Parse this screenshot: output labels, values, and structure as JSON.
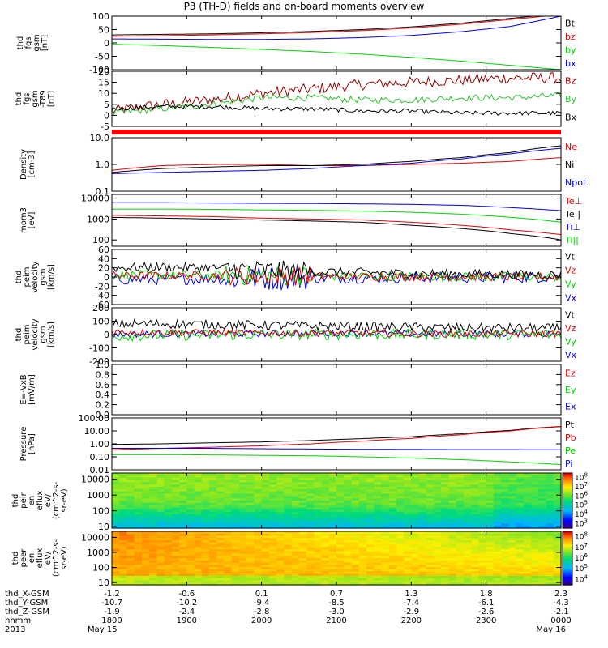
{
  "title": "P3 (TH-D) fields and on-board moments overview",
  "colors": {
    "black": "#000000",
    "red": "#e00000",
    "green": "#00d000",
    "blue": "#0000e0",
    "darkred": "#900000",
    "dkgreen": "#30c030",
    "bar": "#ff0000"
  },
  "chart_data": [
    {
      "type": "line",
      "ylabel": [
        "thd",
        "fgs",
        "gsm",
        "[nT]"
      ],
      "ylim": [
        -100,
        100
      ],
      "yticks": [
        -100,
        -50,
        0,
        50,
        100
      ],
      "legend": [
        {
          "label": "Bt",
          "color": "#000000"
        },
        {
          "label": "bz",
          "color": "#e00000"
        },
        {
          "label": "by",
          "color": "#00d000"
        },
        {
          "label": "bx",
          "color": "#0000e0"
        }
      ],
      "series": [
        {
          "name": "Bt",
          "color": "#000000",
          "values": [
            30,
            32,
            34,
            38,
            43,
            50,
            60,
            74,
            92,
            110
          ]
        },
        {
          "name": "bz",
          "color": "#e00000",
          "values": [
            25,
            27,
            30,
            34,
            39,
            46,
            56,
            70,
            88,
            106
          ]
        },
        {
          "name": "bx",
          "color": "#0000e0",
          "values": [
            15,
            14,
            13,
            13,
            15,
            20,
            28,
            42,
            62,
            100
          ]
        },
        {
          "name": "by",
          "color": "#00d000",
          "values": [
            -5,
            -10,
            -17,
            -24,
            -32,
            -42,
            -54,
            -68,
            -84,
            -100
          ]
        }
      ]
    },
    {
      "type": "line",
      "ylabel": [
        "thd",
        "fgs",
        "gsm",
        "-T89",
        "[nT]"
      ],
      "ylim": [
        -5,
        20
      ],
      "yticks": [
        -5,
        0,
        5,
        10,
        15,
        20
      ],
      "legend": [
        {
          "label": "Bz",
          "color": "#900000"
        },
        {
          "label": "By",
          "color": "#30c030"
        },
        {
          "label": "Bx",
          "color": "#000000"
        }
      ],
      "series": [
        {
          "name": "Bz",
          "color": "#900000",
          "values": [
            2,
            5,
            7,
            10,
            12,
            14,
            15,
            16,
            17,
            17
          ],
          "noise": 2.5
        },
        {
          "name": "By",
          "color": "#30c030",
          "values": [
            1,
            3,
            5,
            8,
            8,
            7,
            7,
            8,
            8,
            9
          ],
          "noise": 1.5
        },
        {
          "name": "Bx",
          "color": "#000000",
          "values": [
            3,
            4,
            4,
            3,
            3,
            2,
            2,
            1,
            1,
            1
          ],
          "noise": 1
        }
      ]
    },
    {
      "type": "line",
      "log": true,
      "ylabel": [
        "Density",
        "[cm-3]"
      ],
      "ylim": [
        0.1,
        10
      ],
      "yticks": [
        0.1,
        1.0,
        10.0
      ],
      "yticklabels": [
        "0.1",
        "1.0",
        "10.0"
      ],
      "legend": [
        {
          "label": "Ne",
          "color": "#e00000"
        },
        {
          "label": "Ni",
          "color": "#000000"
        },
        {
          "label": "Npot",
          "color": "#0000e0"
        }
      ],
      "series": [
        {
          "name": "Ne",
          "color": "#e00000",
          "values": [
            0.6,
            0.9,
            1.0,
            1.0,
            0.9,
            0.9,
            1.0,
            1.1,
            1.3,
            1.8
          ]
        },
        {
          "name": "Ni",
          "color": "#000000",
          "values": [
            0.5,
            0.7,
            0.8,
            0.9,
            0.9,
            1.0,
            1.3,
            1.8,
            2.8,
            5.0
          ]
        },
        {
          "name": "Npot",
          "color": "#0000e0",
          "values": [
            0.45,
            0.5,
            0.55,
            0.6,
            0.7,
            0.9,
            1.1,
            1.6,
            2.5,
            4.0
          ]
        }
      ]
    },
    {
      "type": "line",
      "log": true,
      "ylabel": [
        "mom3",
        "[eV]"
      ],
      "ylim": [
        50,
        15000
      ],
      "yticks": [
        100,
        1000,
        10000
      ],
      "yticklabels": [
        "100",
        "1000",
        "10000"
      ],
      "legend": [
        {
          "label": "Te⊥",
          "color": "#e00000"
        },
        {
          "label": "Te||",
          "color": "#000000"
        },
        {
          "label": "Ti⊥",
          "color": "#0000e0"
        },
        {
          "label": "Ti||",
          "color": "#00d000"
        }
      ],
      "series": [
        {
          "name": "Ti⊥",
          "color": "#0000e0",
          "values": [
            6000,
            6000,
            5800,
            5600,
            5500,
            5300,
            5000,
            4500,
            3500,
            2500
          ]
        },
        {
          "name": "Ti||",
          "color": "#00d000",
          "values": [
            3000,
            3000,
            2900,
            2700,
            2600,
            2400,
            2100,
            1700,
            1200,
            700
          ]
        },
        {
          "name": "Te⊥",
          "color": "#e00000",
          "values": [
            1500,
            1400,
            1300,
            1100,
            1000,
            900,
            700,
            500,
            300,
            180
          ]
        },
        {
          "name": "Te||",
          "color": "#000000",
          "values": [
            1200,
            1100,
            1000,
            900,
            800,
            700,
            500,
            350,
            200,
            100
          ]
        }
      ]
    },
    {
      "type": "line",
      "ylabel": [
        "thd",
        "peim",
        "velocity",
        "gsm",
        "[km/s]"
      ],
      "ylim": [
        -60,
        60
      ],
      "yticks": [
        -60,
        -40,
        -20,
        0,
        20,
        40,
        60
      ],
      "legend": [
        {
          "label": "Vt",
          "color": "#000000"
        },
        {
          "label": "Vz",
          "color": "#e00000"
        },
        {
          "label": "Vy",
          "color": "#00d000"
        },
        {
          "label": "Vx",
          "color": "#0000e0"
        }
      ],
      "series": [
        {
          "name": "Vx",
          "color": "#0000e0",
          "values": [
            -5,
            -5,
            -4,
            -3,
            -2,
            -2,
            -1,
            -1,
            -1,
            0
          ],
          "noise": 12
        },
        {
          "name": "Vy",
          "color": "#00d000",
          "values": [
            5,
            4,
            4,
            3,
            2,
            2,
            1,
            1,
            1,
            0
          ],
          "noise": 10
        },
        {
          "name": "Vz",
          "color": "#e00000",
          "values": [
            3,
            3,
            3,
            2,
            2,
            1,
            1,
            1,
            0,
            0
          ],
          "noise": 9
        },
        {
          "name": "Vt",
          "color": "#000000",
          "values": [
            20,
            22,
            20,
            15,
            12,
            10,
            8,
            7,
            6,
            5
          ],
          "noise": 10
        }
      ]
    },
    {
      "type": "line",
      "ylabel": [
        "thd",
        "peim",
        "velocity",
        "gsm",
        "[km/s]"
      ],
      "ylim": [
        -200,
        200
      ],
      "yticks": [
        -200,
        -100,
        0,
        100,
        200
      ],
      "legend": [
        {
          "label": "Vt",
          "color": "#000000"
        },
        {
          "label": "Vz",
          "color": "#e00000"
        },
        {
          "label": "Vy",
          "color": "#00d000"
        },
        {
          "label": "Vx",
          "color": "#0000e0"
        }
      ],
      "series": [
        {
          "name": "Vx",
          "color": "#0000e0",
          "values": [
            0,
            5,
            5,
            5,
            10,
            10,
            5,
            5,
            5,
            5
          ],
          "noise": 25
        },
        {
          "name": "Vy",
          "color": "#00d000",
          "values": [
            -10,
            -5,
            -5,
            0,
            0,
            0,
            0,
            0,
            0,
            0
          ],
          "noise": 40
        },
        {
          "name": "Vz",
          "color": "#e00000",
          "values": [
            20,
            15,
            15,
            10,
            10,
            10,
            5,
            5,
            5,
            5
          ],
          "noise": 25
        },
        {
          "name": "Vt",
          "color": "#000000",
          "values": [
            80,
            80,
            75,
            70,
            65,
            60,
            55,
            50,
            50,
            45
          ],
          "noise": 35
        }
      ]
    },
    {
      "type": "line",
      "ylabel": [
        "E=-VxB",
        "[mV/m]"
      ],
      "ylim": [
        0,
        1
      ],
      "yticks": [
        0.0,
        0.2,
        0.4,
        0.6,
        0.8,
        1.0
      ],
      "yticklabels": [
        "0.0",
        "0.2",
        "0.4",
        "0.6",
        "0.8",
        "1.0"
      ],
      "legend": [
        {
          "label": "Ez",
          "color": "#e00000"
        },
        {
          "label": "Ey",
          "color": "#00d000"
        },
        {
          "label": "Ex",
          "color": "#0000e0"
        }
      ],
      "series": []
    },
    {
      "type": "line",
      "log": true,
      "ylabel": [
        "Pressure",
        "[nPa]"
      ],
      "ylim": [
        0.01,
        100
      ],
      "yticks": [
        0.01,
        0.1,
        1,
        10,
        100
      ],
      "yticklabels": [
        "0.01",
        "0.10",
        "1.00",
        "10.00",
        "100.00"
      ],
      "legend": [
        {
          "label": "Pt",
          "color": "#000000"
        },
        {
          "label": "Pb",
          "color": "#e00000"
        },
        {
          "label": "Pe",
          "color": "#00d000"
        },
        {
          "label": "Pi",
          "color": "#0000e0"
        }
      ],
      "series": [
        {
          "name": "Pt",
          "color": "#000000",
          "values": [
            0.9,
            1.0,
            1.2,
            1.4,
            1.8,
            2.5,
            3.5,
            6,
            11,
            22
          ]
        },
        {
          "name": "Pb",
          "color": "#e00000",
          "values": [
            0.35,
            0.45,
            0.55,
            0.7,
            1.0,
            1.6,
            2.6,
            5,
            10,
            21
          ]
        },
        {
          "name": "Pi",
          "color": "#0000e0",
          "values": [
            0.45,
            0.45,
            0.45,
            0.42,
            0.4,
            0.38,
            0.37,
            0.36,
            0.36,
            0.35
          ]
        },
        {
          "name": "Pe",
          "color": "#00d000",
          "values": [
            0.15,
            0.15,
            0.14,
            0.13,
            0.12,
            0.1,
            0.08,
            0.06,
            0.04,
            0.025
          ]
        }
      ]
    },
    {
      "type": "heatmap",
      "log": true,
      "ylabel": [
        "thd",
        "peir",
        "en",
        "eflux",
        "eV/",
        "(cm^2-s-",
        "sr-eV)"
      ],
      "ylim": [
        8,
        25000
      ],
      "yticks": [
        10,
        100,
        1000,
        10000
      ],
      "yticklabels": [
        "10",
        "100",
        "1000",
        "10000"
      ],
      "colorbar": {
        "min_exp": 3,
        "max_exp": 8,
        "labels": [
          "10^3",
          "10^4",
          "10^5",
          "10^6",
          "10^7",
          "10^8"
        ]
      }
    },
    {
      "type": "heatmap",
      "log": true,
      "ylabel": [
        "thd",
        "peer",
        "en",
        "eflux",
        "eV/",
        "(cm^2-s-",
        "sr-eV)"
      ],
      "ylim": [
        7,
        25000
      ],
      "yticks": [
        10,
        100,
        1000,
        10000
      ],
      "yticklabels": [
        "10",
        "100",
        "1000",
        "10000"
      ],
      "colorbar": {
        "min_exp": 4,
        "max_exp": 8,
        "labels": [
          "10^4",
          "10^5",
          "10^6",
          "10^7",
          "10^8"
        ]
      }
    }
  ],
  "xaxis": {
    "row_labels": [
      "thd_X-GSM",
      "thd_Y-GSM",
      "thd_Z-GSM",
      "hhmm",
      "2013"
    ],
    "columns": [
      [
        "-1.2",
        "-10.7",
        "-1.9",
        "1800",
        "May 15"
      ],
      [
        "-0.6",
        "-10.2",
        "-2.4",
        "1900",
        ""
      ],
      [
        "0.1",
        "-9.4",
        "-2.8",
        "2000",
        ""
      ],
      [
        "0.7",
        "-8.5",
        "-3.0",
        "2100",
        ""
      ],
      [
        "1.3",
        "-7.4",
        "-2.9",
        "2200",
        ""
      ],
      [
        "1.8",
        "-6.1",
        "-2.6",
        "2300",
        ""
      ],
      [
        "2.3",
        "-4.3",
        "-2.1",
        "0000",
        "May 16"
      ]
    ]
  }
}
